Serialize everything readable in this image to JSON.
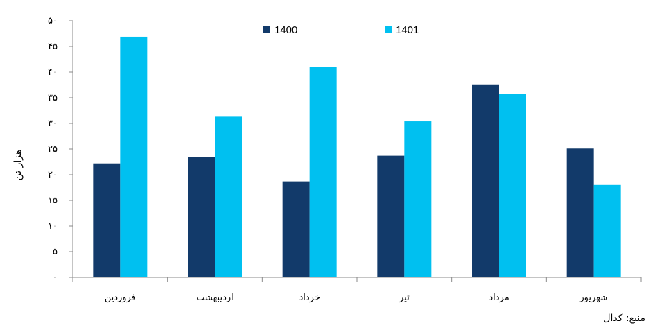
{
  "chart_data": {
    "type": "bar",
    "categories": [
      "فروردین",
      "اردیبهشت",
      "خرداد",
      "تیر",
      "مرداد",
      "شهریور"
    ],
    "series": [
      {
        "name": "1400",
        "values": [
          22.2,
          23.4,
          18.7,
          23.7,
          37.6,
          25.1
        ],
        "color": "#123a6a"
      },
      {
        "name": "1401",
        "values": [
          46.9,
          31.3,
          41.0,
          30.4,
          35.8,
          18.0
        ],
        "color": "#00c0f0"
      }
    ],
    "ylabel": "هزار تن",
    "ylim": [
      0,
      50
    ],
    "yticks": [
      0,
      5,
      10,
      15,
      20,
      25,
      30,
      35,
      40,
      45,
      50
    ],
    "ytick_labels": [
      "۰",
      "۵",
      "۱۰",
      "۱۵",
      "۲۰",
      "۲۵",
      "۳۰",
      "۳۵",
      "۴۰",
      "۴۵",
      "۵۰"
    ],
    "legend_position": "top-center",
    "grid": false
  },
  "source_text": "منبع: کدال"
}
